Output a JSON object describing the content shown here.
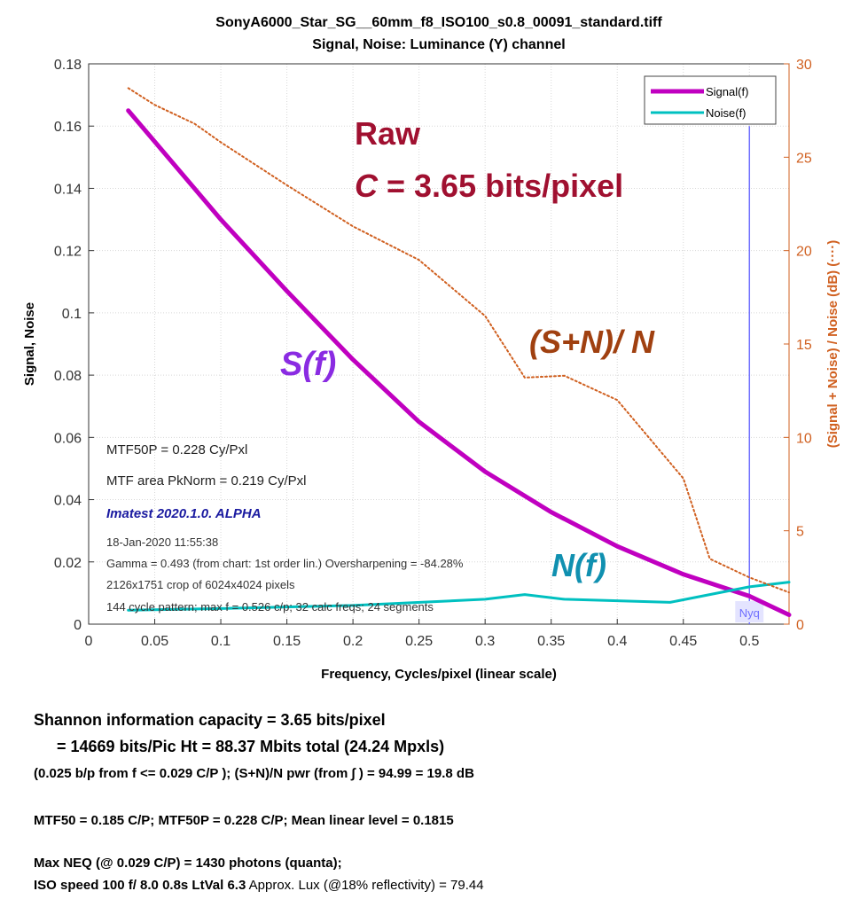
{
  "chart_data": {
    "type": "line",
    "title": "SonyA6000_Star_SG__60mm_f8_ISO100_s0.8_00091_standard.tiff",
    "subtitle": "Signal, Noise:  Luminance (Y) channel",
    "xlabel": "Frequency, Cycles/pixel (linear scale)",
    "ylabel": "Signal, Noise",
    "y2label": "(Signal + Noise) / Noise (dB)  (····)",
    "xlim": [
      0,
      0.53
    ],
    "ylim": [
      0,
      0.18
    ],
    "y2lim": [
      0,
      30
    ],
    "grid": true,
    "legend_position": "top-right",
    "xticks": [
      "0",
      "0.05",
      "0.1",
      "0.15",
      "0.2",
      "0.25",
      "0.3",
      "0.35",
      "0.4",
      "0.45",
      "0.5"
    ],
    "yticks": [
      "0",
      "0.02",
      "0.04",
      "0.06",
      "0.08",
      "0.1",
      "0.12",
      "0.14",
      "0.16",
      "0.18"
    ],
    "y2ticks": [
      "0",
      "5",
      "10",
      "15",
      "20",
      "25",
      "30"
    ],
    "series": [
      {
        "name": "Signal(f)",
        "color": "#c000c0",
        "style": "solid-thick",
        "axis": "left",
        "x": [
          0.03,
          0.05,
          0.08,
          0.1,
          0.15,
          0.2,
          0.25,
          0.3,
          0.35,
          0.4,
          0.45,
          0.5,
          0.53
        ],
        "y": [
          0.165,
          0.155,
          0.14,
          0.13,
          0.107,
          0.085,
          0.065,
          0.049,
          0.036,
          0.025,
          0.016,
          0.009,
          0.003
        ]
      },
      {
        "name": "Noise(f)",
        "color": "#00c0c0",
        "style": "solid",
        "axis": "left",
        "x": [
          0.03,
          0.1,
          0.2,
          0.3,
          0.33,
          0.36,
          0.44,
          0.5,
          0.53
        ],
        "y": [
          0.0045,
          0.005,
          0.006,
          0.008,
          0.0095,
          0.008,
          0.007,
          0.012,
          0.0135
        ]
      },
      {
        "color": "#d06020",
        "style": "dotted",
        "axis": "right",
        "x": [
          0.03,
          0.05,
          0.08,
          0.1,
          0.15,
          0.2,
          0.25,
          0.3,
          0.33,
          0.36,
          0.4,
          0.45,
          0.47,
          0.5,
          0.53
        ],
        "y": [
          28.7,
          27.8,
          26.8,
          25.8,
          23.5,
          21.3,
          19.5,
          16.5,
          13.2,
          13.3,
          12.0,
          7.8,
          3.5,
          2.5,
          1.7
        ]
      }
    ],
    "nyquist": {
      "x": 0.5,
      "label": "Nyq",
      "color": "#6f6fff"
    },
    "annotations": {
      "raw": "Raw",
      "capacity_c": "C",
      "capacity_rest": " = 3.65 bits/pixel",
      "s_label": "S(f)",
      "n_label": "N(f)",
      "snr_label": "(S+N)/ N"
    },
    "info_box": {
      "mtf50p": "MTF50P = 0.228 Cy/Pxl",
      "mtf_area": "MTF area PkNorm = 0.219 Cy/Pxl",
      "version": "Imatest 2020.1.0. ALPHA",
      "date": "18-Jan-2020 11:55:38",
      "gamma": "Gamma = 0.493  (from chart: 1st order lin.)  Oversharpening = -84.28%",
      "crop": "2126x1751 crop of 6024x4024 pixels",
      "pattern": "144 cycle pattern; max f = 0.526 c/p;  32 calc freqs;  24 segments"
    }
  },
  "stats": {
    "line1": "Shannon information capacity  =  3.65 bits/pixel",
    "line2": "=  14669 bits/Pic Ht =  88.37  Mbits total (24.24 Mpxls)",
    "line3": "(0.025 b/p from f <= 0.029 C/P );   (S+N)/N pwr (from ∫ ) = 94.99 = 19.8 dB",
    "line4": "MTF50 = 0.185 C/P;  MTF50P = 0.228 C/P;   Mean linear level = 0.1815",
    "line5": "Max NEQ (@ 0.029 C/P) = 1430 photons (quanta);",
    "line6_bold": "ISO speed  100  f/ 8.0   0.8s   LtVal  6.3",
    "line6_rest": "   Approx. Lux (@18% reflectivity) = 79.44"
  }
}
